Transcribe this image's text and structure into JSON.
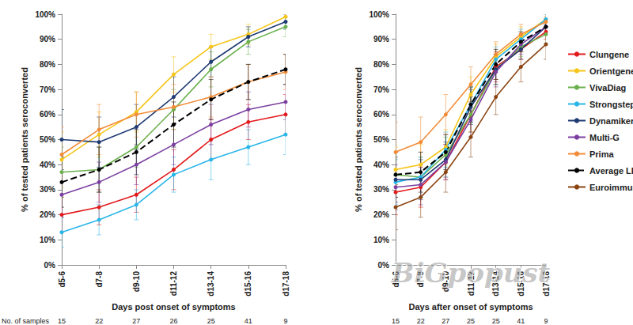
{
  "chart_data": [
    {
      "type": "line",
      "x_label": "Days post onset of symptoms",
      "y_label": "% of tested patients seroconverted",
      "categories": [
        "d5-6",
        "d7-8",
        "d9-10",
        "d11-12",
        "d13-14",
        "d15-16",
        "d17-18"
      ],
      "sample_label": "No. of samples",
      "sample_counts": [
        15,
        22,
        27,
        26,
        25,
        41,
        9
      ],
      "ylim": [
        0,
        100
      ],
      "yticks": [
        {
          "value": 0,
          "label": "0%"
        },
        {
          "value": 10,
          "label": "10%"
        },
        {
          "value": 20,
          "label": "20%"
        },
        {
          "value": 30,
          "label": "30%"
        },
        {
          "value": 40,
          "label": "40%"
        },
        {
          "value": 50,
          "label": "50%"
        },
        {
          "value": 60,
          "label": "60%"
        },
        {
          "value": 70,
          "label": "70%"
        },
        {
          "value": 80,
          "label": "80%"
        },
        {
          "value": 90,
          "label": "90%"
        },
        {
          "value": 100,
          "label": "100%"
        }
      ],
      "grid": false,
      "legend": "right",
      "series": [
        {
          "name": "Clungene",
          "color": "#e31a1c",
          "marker": "circle",
          "line_style": "solid",
          "values": [
            20,
            23,
            28,
            38,
            50,
            57,
            60
          ],
          "errors": [
            7,
            7,
            7,
            8,
            8,
            7,
            8
          ]
        },
        {
          "name": "Orientgene",
          "color": "#f5c518",
          "marker": "circle",
          "line_style": "solid",
          "values": [
            42,
            52,
            61,
            76,
            87,
            92,
            99
          ],
          "errors": [
            11,
            9,
            8,
            7,
            5,
            4,
            2
          ]
        },
        {
          "name": "VivaDiag",
          "color": "#6ab04c",
          "marker": "circle",
          "line_style": "solid",
          "values": [
            37,
            38,
            47,
            62,
            78,
            89,
            95
          ],
          "errors": [
            10,
            9,
            8,
            8,
            7,
            5,
            4
          ]
        },
        {
          "name": "Strongstep",
          "color": "#29b6e8",
          "marker": "circle",
          "line_style": "solid",
          "values": [
            13,
            18,
            24,
            36,
            42,
            47,
            52
          ],
          "errors": [
            6,
            6,
            6,
            7,
            8,
            7,
            8
          ]
        },
        {
          "name": "Dynamiker",
          "color": "#1f3b73",
          "marker": "circle",
          "line_style": "solid",
          "values": [
            50,
            49,
            55,
            67,
            81,
            91,
            97
          ],
          "errors": [
            12,
            10,
            9,
            8,
            6,
            4,
            3
          ]
        },
        {
          "name": "Multi-G",
          "color": "#7b3fa0",
          "marker": "circle",
          "line_style": "solid",
          "values": [
            28,
            33,
            40,
            48,
            56,
            62,
            65
          ],
          "errors": [
            9,
            8,
            8,
            8,
            8,
            7,
            7
          ]
        },
        {
          "name": "Prima",
          "color": "#f28c38",
          "marker": "circle",
          "line_style": "solid",
          "values": [
            44,
            54,
            60,
            63,
            67,
            73,
            77
          ],
          "errors": [
            11,
            10,
            9,
            9,
            8,
            7,
            7
          ]
        },
        {
          "name": "Average LFA",
          "color": "#000000",
          "marker": "circle",
          "line_style": "dashed",
          "values": [
            33,
            38,
            45,
            56,
            66,
            73,
            78
          ],
          "errors": [
            10,
            9,
            9,
            9,
            8,
            7,
            6
          ]
        }
      ]
    },
    {
      "type": "line",
      "x_label": "Days after onset of symptoms",
      "y_label": "% of tested patients seroconverted",
      "categories": [
        "d5-6",
        "d7-8",
        "d9-10",
        "d11-12",
        "d13-14",
        "d15-16",
        "d17-18"
      ],
      "sample_counts": [
        15,
        22,
        27,
        25,
        25,
        41,
        9
      ],
      "ylim": [
        0,
        100
      ],
      "yticks": [
        {
          "value": 0,
          "label": "0%"
        },
        {
          "value": 10,
          "label": "10%"
        },
        {
          "value": 20,
          "label": "20%"
        },
        {
          "value": 30,
          "label": "30%"
        },
        {
          "value": 40,
          "label": "40%"
        },
        {
          "value": 50,
          "label": "50%"
        },
        {
          "value": 60,
          "label": "60%"
        },
        {
          "value": 70,
          "label": "70%"
        },
        {
          "value": 80,
          "label": "80%"
        },
        {
          "value": 90,
          "label": "90%"
        },
        {
          "value": 100,
          "label": "100%"
        }
      ],
      "grid": false,
      "legend": "right",
      "annotations": [
        "BiGpopust"
      ],
      "series": [
        {
          "name": "Clungene",
          "color": "#e31a1c",
          "marker": "circle",
          "line_style": "solid",
          "values": [
            29,
            31,
            41,
            60,
            79,
            86,
            93
          ],
          "errors": [
            9,
            8,
            7,
            7,
            6,
            4,
            3
          ]
        },
        {
          "name": "Orientgene",
          "color": "#f5c518",
          "marker": "circle",
          "line_style": "solid",
          "values": [
            38,
            40,
            47,
            68,
            83,
            91,
            98
          ],
          "errors": [
            9,
            8,
            7,
            7,
            5,
            4,
            2
          ]
        },
        {
          "name": "VivaDiag",
          "color": "#6ab04c",
          "marker": "circle",
          "line_style": "solid",
          "values": [
            36,
            35,
            44,
            60,
            78,
            87,
            92
          ],
          "errors": [
            9,
            8,
            7,
            7,
            6,
            4,
            4
          ]
        },
        {
          "name": "Strongstep",
          "color": "#29b6e8",
          "marker": "circle",
          "line_style": "solid",
          "values": [
            33,
            35,
            46,
            64,
            82,
            90,
            98
          ],
          "errors": [
            9,
            8,
            7,
            7,
            5,
            4,
            2
          ]
        },
        {
          "name": "Dynamiker",
          "color": "#1f3b73",
          "marker": "circle",
          "line_style": "solid",
          "values": [
            34,
            34,
            42,
            63,
            78,
            86,
            95
          ],
          "errors": [
            9,
            8,
            7,
            7,
            6,
            4,
            3
          ]
        },
        {
          "name": "Multi-G",
          "color": "#7b3fa0",
          "marker": "circle",
          "line_style": "solid",
          "values": [
            31,
            32,
            41,
            58,
            77,
            88,
            95
          ],
          "errors": [
            9,
            8,
            7,
            7,
            6,
            4,
            3
          ]
        },
        {
          "name": "Prima",
          "color": "#f28c38",
          "marker": "circle",
          "line_style": "solid",
          "values": [
            45,
            49,
            60,
            72,
            84,
            92,
            97
          ],
          "errors": [
            12,
            10,
            8,
            7,
            5,
            4,
            2
          ]
        },
        {
          "name": "Average LFA",
          "color": "#000000",
          "marker": "circle",
          "line_style": "dashed",
          "values": [
            36,
            37,
            45,
            64,
            80,
            89,
            95
          ],
          "errors": [
            9,
            8,
            7,
            7,
            6,
            4,
            3
          ]
        },
        {
          "name": "Euroimmun",
          "color": "#8b4513",
          "marker": "circle",
          "line_style": "solid",
          "values": [
            23,
            27,
            37,
            51,
            67,
            79,
            88
          ],
          "errors": [
            9,
            8,
            8,
            8,
            7,
            6,
            6
          ]
        }
      ]
    }
  ]
}
